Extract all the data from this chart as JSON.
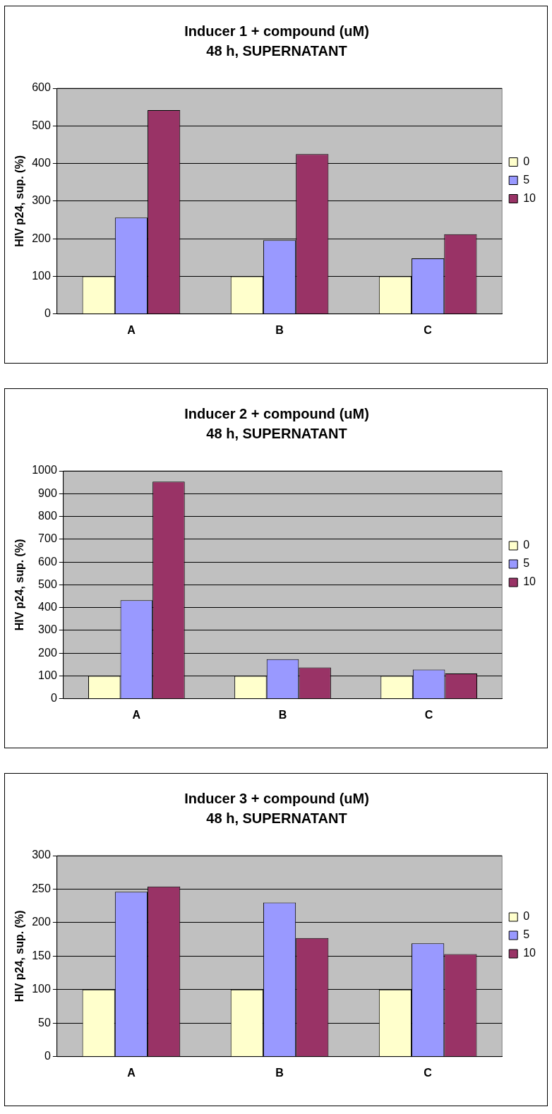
{
  "chart_data": [
    {
      "type": "bar",
      "title": "Inducer 1 + compound (uM)",
      "subtitle": "48 h, SUPERNATANT",
      "ylabel": "HIV p24, sup. (%)",
      "categories": [
        "A",
        "B",
        "C"
      ],
      "series": [
        {
          "name": "0",
          "color": "#ffffcc",
          "values": [
            100,
            100,
            100
          ]
        },
        {
          "name": "5",
          "color": "#9999ff",
          "values": [
            256,
            196,
            148
          ]
        },
        {
          "name": "10",
          "color": "#993366",
          "values": [
            542,
            425,
            212
          ]
        }
      ],
      "ylim": [
        0,
        600
      ],
      "yticks": [
        0,
        100,
        200,
        300,
        400,
        500,
        600
      ],
      "grid": "y",
      "legend": "right"
    },
    {
      "type": "bar",
      "title": "Inducer 2 + compound (uM)",
      "subtitle": "48 h, SUPERNATANT",
      "ylabel": "HIV p24, sup. (%)",
      "categories": [
        "A",
        "B",
        "C"
      ],
      "series": [
        {
          "name": "0",
          "color": "#ffffcc",
          "values": [
            100,
            100,
            100
          ]
        },
        {
          "name": "5",
          "color": "#9999ff",
          "values": [
            432,
            174,
            128
          ]
        },
        {
          "name": "10",
          "color": "#993366",
          "values": [
            953,
            137,
            111
          ]
        }
      ],
      "ylim": [
        0,
        1000
      ],
      "yticks": [
        0,
        100,
        200,
        300,
        400,
        500,
        600,
        700,
        800,
        900,
        1000
      ],
      "grid": "y",
      "legend": "right"
    },
    {
      "type": "bar",
      "title": "Inducer 3 + compound (uM)",
      "subtitle": "48 h, SUPERNATANT",
      "ylabel": "HIV p24, sup. (%)",
      "categories": [
        "A",
        "B",
        "C"
      ],
      "series": [
        {
          "name": "0",
          "color": "#ffffcc",
          "values": [
            100,
            100,
            100
          ]
        },
        {
          "name": "5",
          "color": "#9999ff",
          "values": [
            246,
            230,
            169
          ]
        },
        {
          "name": "10",
          "color": "#993366",
          "values": [
            254,
            177,
            153
          ]
        }
      ],
      "ylim": [
        0,
        300
      ],
      "yticks": [
        0,
        50,
        100,
        150,
        200,
        250,
        300
      ],
      "grid": "y",
      "legend": "right"
    }
  ]
}
